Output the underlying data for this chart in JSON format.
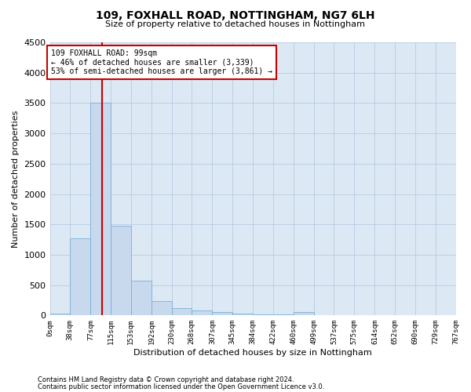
{
  "title": "109, FOXHALL ROAD, NOTTINGHAM, NG7 6LH",
  "subtitle": "Size of property relative to detached houses in Nottingham",
  "xlabel": "Distribution of detached houses by size in Nottingham",
  "ylabel": "Number of detached properties",
  "bar_color": "#c8d9ee",
  "bar_edge_color": "#7aafd4",
  "background_color": "#ffffff",
  "plot_bg_color": "#dce9f5",
  "grid_color": "#b0c4de",
  "annotation_box_color": "#cc0000",
  "annotation_line_color": "#cc0000",
  "bin_edges": [
    0,
    38,
    77,
    115,
    153,
    192,
    230,
    268,
    307,
    345,
    384,
    422,
    460,
    499,
    537,
    575,
    614,
    652,
    690,
    729,
    767
  ],
  "bar_heights": [
    30,
    1270,
    3500,
    1480,
    570,
    240,
    115,
    80,
    55,
    35,
    20,
    15,
    50,
    5,
    0,
    0,
    0,
    0,
    0,
    0
  ],
  "tick_labels": [
    "0sqm",
    "38sqm",
    "77sqm",
    "115sqm",
    "153sqm",
    "192sqm",
    "230sqm",
    "268sqm",
    "307sqm",
    "345sqm",
    "384sqm",
    "422sqm",
    "460sqm",
    "499sqm",
    "537sqm",
    "575sqm",
    "614sqm",
    "652sqm",
    "690sqm",
    "729sqm",
    "767sqm"
  ],
  "ylim": [
    0,
    4500
  ],
  "yticks": [
    0,
    500,
    1000,
    1500,
    2000,
    2500,
    3000,
    3500,
    4000,
    4500
  ],
  "annotation_text_line1": "109 FOXHALL ROAD: 99sqm",
  "annotation_text_line2": "← 46% of detached houses are smaller (3,339)",
  "annotation_text_line3": "53% of semi-detached houses are larger (3,861) →",
  "vline_x": 99,
  "footnote1": "Contains HM Land Registry data © Crown copyright and database right 2024.",
  "footnote2": "Contains public sector information licensed under the Open Government Licence v3.0."
}
